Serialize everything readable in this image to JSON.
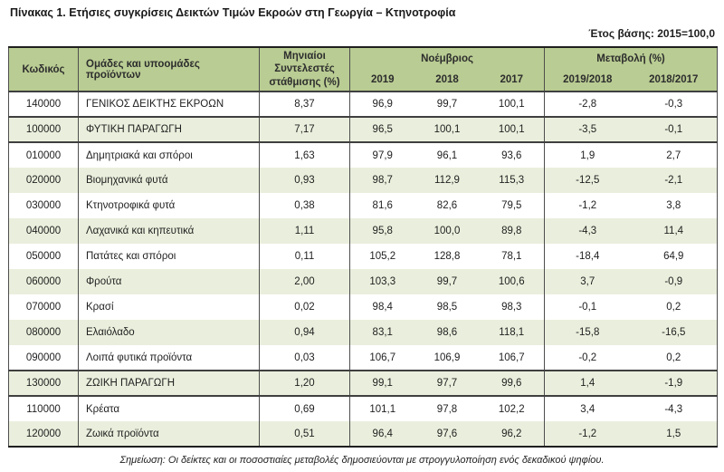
{
  "page": {
    "title": "Πίνακας 1. Ετήσιες συγκρίσεις Δεικτών Τιμών Εκροών στη Γεωργία – Κτηνοτροφία",
    "base_year": "Έτος βάσης: 2015=100,0",
    "footnote": "Σημείωση: Οι δείκτες και οι ποσοστιαίες μεταβολές δημοσιεύονται με στρογγυλοποίηση ενός δεκαδικού ψηφίου."
  },
  "table": {
    "headers": {
      "code": "Κωδικός",
      "groups": "Ομάδες και υποομάδες\nπροϊόντων",
      "weights": "Μηνιαίοι\nΣυντελεστές\nστάθμισης (%)",
      "month_group": "Νοέμβριος",
      "month_years": [
        "2019",
        "2018",
        "2017"
      ],
      "change_group": "Μεταβολή (%)",
      "change_periods": [
        "2019/2018",
        "2018/2017"
      ]
    },
    "rows": [
      {
        "code": "140000",
        "name": "ΓΕΝΙΚΟΣ ΔΕΙΚΤΗΣ ΕΚΡΟΩΝ",
        "weight": "8,37",
        "november": [
          "96,9",
          "99,7",
          "100,1"
        ],
        "change": [
          "-2,8",
          "-0,3"
        ],
        "aggregate": true,
        "shaded": false
      },
      {
        "code": "100000",
        "name": "ΦΥΤΙΚΗ ΠΑΡΑΓΩΓΗ",
        "weight": "7,17",
        "november": [
          "96,5",
          "100,1",
          "100,1"
        ],
        "change": [
          "-3,5",
          "-0,1"
        ],
        "aggregate": true,
        "shaded": true
      },
      {
        "code": "010000",
        "name": "Δημητριακά και σπόροι",
        "weight": "1,63",
        "november": [
          "97,9",
          "96,1",
          "93,6"
        ],
        "change": [
          "1,9",
          "2,7"
        ],
        "aggregate": false,
        "shaded": false
      },
      {
        "code": "020000",
        "name": "Βιομηχανικά φυτά",
        "weight": "0,93",
        "november": [
          "98,7",
          "112,9",
          "115,3"
        ],
        "change": [
          "-12,5",
          "-2,1"
        ],
        "aggregate": false,
        "shaded": true
      },
      {
        "code": "030000",
        "name": "Κτηνοτροφικά φυτά",
        "weight": "0,38",
        "november": [
          "81,6",
          "82,6",
          "79,5"
        ],
        "change": [
          "-1,2",
          "3,8"
        ],
        "aggregate": false,
        "shaded": false
      },
      {
        "code": "040000",
        "name": "Λαχανικά και κηπευτικά",
        "weight": "1,11",
        "november": [
          "95,8",
          "100,0",
          "89,8"
        ],
        "change": [
          "-4,3",
          "11,4"
        ],
        "aggregate": false,
        "shaded": true
      },
      {
        "code": "050000",
        "name": "Πατάτες και σπόροι",
        "weight": "0,11",
        "november": [
          "105,2",
          "128,8",
          "78,1"
        ],
        "change": [
          "-18,4",
          "64,9"
        ],
        "aggregate": false,
        "shaded": false
      },
      {
        "code": "060000",
        "name": "Φρούτα",
        "weight": "2,00",
        "november": [
          "103,3",
          "99,7",
          "100,6"
        ],
        "change": [
          "3,7",
          "-0,9"
        ],
        "aggregate": false,
        "shaded": true
      },
      {
        "code": "070000",
        "name": "Κρασί",
        "weight": "0,02",
        "november": [
          "98,4",
          "98,5",
          "98,3"
        ],
        "change": [
          "-0,1",
          "0,2"
        ],
        "aggregate": false,
        "shaded": false
      },
      {
        "code": "080000",
        "name": "Ελαιόλαδο",
        "weight": "0,94",
        "november": [
          "83,1",
          "98,6",
          "118,1"
        ],
        "change": [
          "-15,8",
          "-16,5"
        ],
        "aggregate": false,
        "shaded": true
      },
      {
        "code": "090000",
        "name": "Λοιπά φυτικά προϊόντα",
        "weight": "0,03",
        "november": [
          "106,7",
          "106,9",
          "106,7"
        ],
        "change": [
          "-0,2",
          "0,2"
        ],
        "aggregate": false,
        "shaded": false
      },
      {
        "code": "130000",
        "name": "ΖΩΙΚΗ ΠΑΡΑΓΩΓΗ",
        "weight": "1,20",
        "november": [
          "99,1",
          "97,7",
          "99,6"
        ],
        "change": [
          "1,4",
          "-1,9"
        ],
        "aggregate": true,
        "shaded": true
      },
      {
        "code": "110000",
        "name": "Κρέατα",
        "weight": "0,69",
        "november": [
          "101,1",
          "97,8",
          "102,2"
        ],
        "change": [
          "3,4",
          "-4,3"
        ],
        "aggregate": false,
        "shaded": false
      },
      {
        "code": "120000",
        "name": "Ζωικά προϊόντα",
        "weight": "0,51",
        "november": [
          "96,4",
          "97,6",
          "96,2"
        ],
        "change": [
          "-1,2",
          "1,5"
        ],
        "aggregate": false,
        "shaded": true
      }
    ]
  },
  "colors": {
    "header_bg": "#b9cc93",
    "row_shade_bg": "#eaefdd",
    "grid_line": "#4e4e4e",
    "frame_line": "#1f1f1f",
    "text": "#1f1f1f"
  }
}
